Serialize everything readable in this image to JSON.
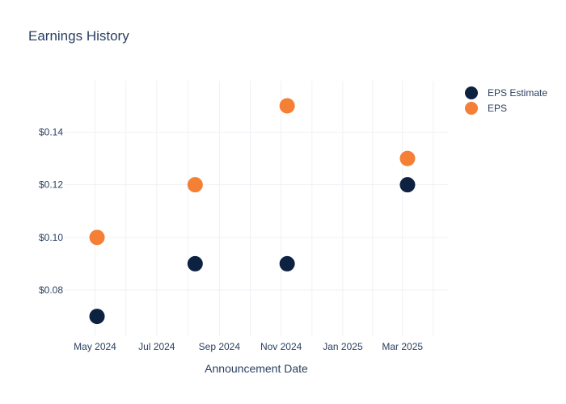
{
  "chart_data": {
    "type": "scatter",
    "title": "Earnings History",
    "xlabel": "Announcement Date",
    "ylabel": "",
    "x_tick_labels": [
      "May 2024",
      "Jul 2024",
      "Sep 2024",
      "Nov 2024",
      "Jan 2025",
      "Mar 2025"
    ],
    "x_tick_dates": [
      "2024-05-01",
      "2024-07-01",
      "2024-09-01",
      "2024-11-01",
      "2025-01-01",
      "2025-03-01"
    ],
    "x_range": [
      "2024-04-01",
      "2025-04-15"
    ],
    "y_tick_labels": [
      "$0.08",
      "$0.10",
      "$0.12",
      "$0.14"
    ],
    "y_tick_values": [
      0.08,
      0.1,
      0.12,
      0.14
    ],
    "ylim": [
      0.0625,
      0.1595
    ],
    "grid": true,
    "legend_position": "top-right",
    "series": [
      {
        "name": "EPS Estimate",
        "color": "#0d2240",
        "points": [
          {
            "x": "2024-05-03",
            "y": 0.07
          },
          {
            "x": "2024-08-08",
            "y": 0.09
          },
          {
            "x": "2024-11-07",
            "y": 0.09
          },
          {
            "x": "2025-03-06",
            "y": 0.12
          }
        ]
      },
      {
        "name": "EPS",
        "color": "#f47f35",
        "points": [
          {
            "x": "2024-05-03",
            "y": 0.1
          },
          {
            "x": "2024-08-08",
            "y": 0.12
          },
          {
            "x": "2024-11-07",
            "y": 0.15
          },
          {
            "x": "2025-03-06",
            "y": 0.13
          }
        ]
      }
    ]
  }
}
